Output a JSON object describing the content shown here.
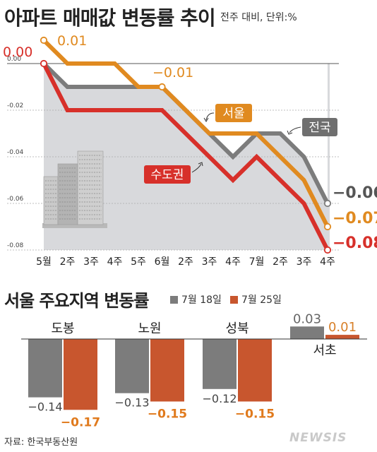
{
  "header": {
    "title": "아파트 매매값 변동률 추이",
    "subtitle": "전주 대비, 단위:%"
  },
  "colors": {
    "seoul": "#e08a20",
    "national": "#7c7c7c",
    "capital": "#d7302a",
    "bar_jul18": "#7c7c7c",
    "bar_jul25": "#c8562e",
    "shade": "#d8d9dc"
  },
  "chart_data": [
    {
      "type": "line",
      "categories": [
        "5월",
        "2주",
        "3주",
        "4주",
        "5주",
        "6월",
        "2주",
        "3주",
        "4주",
        "7월",
        "2주",
        "3주",
        "4주"
      ],
      "ylim": [
        -0.08,
        0.0
      ],
      "yticks": [
        "0.00",
        "-0.02",
        "-0.04",
        "-0.06",
        "-0.08"
      ],
      "series": [
        {
          "name": "서울",
          "values": [
            0.01,
            0.0,
            0.0,
            0.0,
            -0.01,
            -0.01,
            -0.02,
            -0.03,
            -0.03,
            -0.03,
            -0.04,
            -0.05,
            -0.07
          ]
        },
        {
          "name": "전국",
          "values": [
            0.0,
            -0.01,
            -0.01,
            -0.01,
            -0.01,
            -0.01,
            -0.02,
            -0.03,
            -0.04,
            -0.03,
            -0.03,
            -0.04,
            -0.06
          ]
        },
        {
          "name": "수도권",
          "values": [
            0.0,
            -0.02,
            -0.02,
            -0.02,
            -0.02,
            -0.02,
            -0.03,
            -0.04,
            -0.05,
            -0.04,
            -0.05,
            -0.06,
            -0.08
          ]
        }
      ],
      "annotations": [
        "0.00",
        "0.01",
        "−0.01",
        "−0.06",
        "−0.07",
        "−0.08"
      ]
    },
    {
      "type": "bar",
      "title": "서울 주요지역 변동률",
      "categories": [
        "도봉",
        "노원",
        "성북",
        "서초"
      ],
      "series": [
        {
          "name": "7월 18일",
          "values": [
            -0.14,
            -0.13,
            -0.12,
            0.03
          ]
        },
        {
          "name": "7월 25일",
          "values": [
            -0.17,
            -0.15,
            -0.15,
            0.01
          ]
        }
      ],
      "labels": [
        [
          "−0.14",
          "−0.13",
          "−0.12",
          "0.03"
        ],
        [
          "−0.17",
          "−0.15",
          "−0.15",
          "0.01"
        ]
      ]
    }
  ],
  "footer": {
    "source": "자료: 한국부동산원",
    "watermark": "NEWSIS"
  }
}
